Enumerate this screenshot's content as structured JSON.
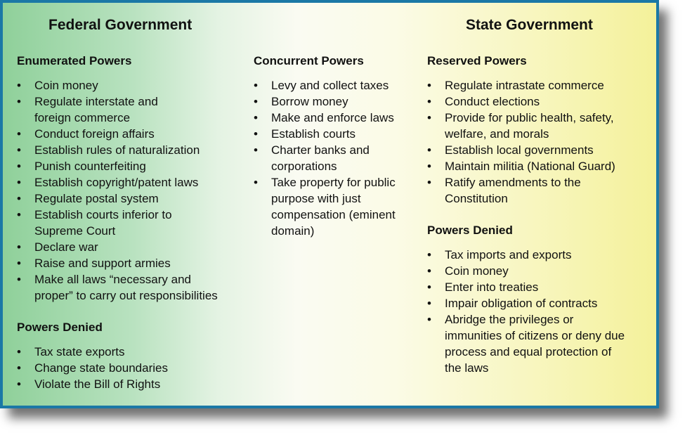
{
  "titles": {
    "federal": "Federal Government",
    "state": "State Government"
  },
  "colors": {
    "border": "#1b78a6",
    "federal_green": "#8fd09a",
    "state_yellow": "#f4f19a"
  },
  "sections": {
    "enumerated": {
      "heading": "Enumerated Powers",
      "items": [
        "Coin money",
        "Regulate interstate and\nforeign commerce",
        "Conduct foreign affairs",
        "Establish rules of naturalization",
        "Punish counterfeiting",
        "Establish copyright/patent laws",
        "Regulate postal system",
        "Establish courts inferior to\nSupreme Court",
        "Declare war",
        "Raise and support armies",
        "Make all laws “necessary and\nproper” to carry out responsibilities"
      ]
    },
    "federal_denied": {
      "heading": "Powers Denied",
      "items": [
        "Tax state exports",
        "Change state boundaries",
        "Violate the Bill of Rights"
      ]
    },
    "concurrent": {
      "heading": "Concurrent Powers",
      "items": [
        "Levy and collect taxes",
        "Borrow money",
        "Make and enforce laws",
        "Establish courts",
        "Charter banks and\ncorporations",
        "Take property for public\npurpose with just\ncompensation (eminent\ndomain)"
      ]
    },
    "reserved": {
      "heading": "Reserved Powers",
      "items": [
        "Regulate intrastate commerce",
        "Conduct elections",
        "Provide for public health, safety,\nwelfare, and morals",
        "Establish local governments",
        "Maintain militia (National Guard)",
        "Ratify amendments to the\nConstitution"
      ]
    },
    "state_denied": {
      "heading": "Powers Denied",
      "items": [
        "Tax imports and exports",
        "Coin money",
        "Enter into treaties",
        "Impair obligation of contracts",
        "Abridge the privileges or\nimmunities of citizens or deny due\nprocess and equal protection of\nthe laws"
      ]
    }
  },
  "bullet": "•"
}
